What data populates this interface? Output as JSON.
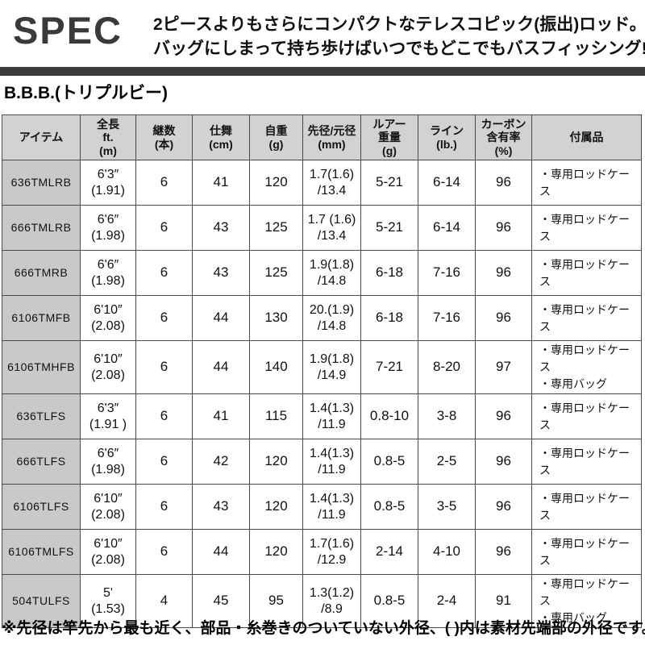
{
  "header": {
    "spec_title": "SPEC",
    "description_line1": "2ピースよりもさらにコンパクトなテレスコピック(振出)ロッド。",
    "description_line2": "バッグにしまって持ち歩けばいつでもどこでもバスフィッシング!"
  },
  "section_title": "B.B.B.(トリプルビー)",
  "spec_table": {
    "columns": [
      {
        "key": "item",
        "label": "アイテム"
      },
      {
        "key": "length",
        "label": "全長\nft.\n(m)"
      },
      {
        "key": "pieces",
        "label": "継数\n(本)"
      },
      {
        "key": "closed_length",
        "label": "仕舞\n(cm)"
      },
      {
        "key": "weight",
        "label": "自重\n(g)"
      },
      {
        "key": "diameter",
        "label": "先径/元径\n(mm)"
      },
      {
        "key": "lure_weight",
        "label": "ルアー\n重量\n(g)"
      },
      {
        "key": "line",
        "label": "ライン\n(lb.)"
      },
      {
        "key": "carbon",
        "label": "カーボン\n含有率\n(%)"
      },
      {
        "key": "accessories",
        "label": "付属品"
      }
    ],
    "rows": [
      {
        "item": "636TMLRB",
        "length": "6'3″\n(1.91)",
        "pieces": "6",
        "closed_length": "41",
        "weight": "120",
        "diameter": "1.7(1.6)\n/13.4",
        "lure_weight": "5-21",
        "line": "6-14",
        "carbon": "96",
        "accessories": "・専用ロッドケース"
      },
      {
        "item": "666TMLRB",
        "length": "6'6″\n(1.98)",
        "pieces": "6",
        "closed_length": "43",
        "weight": "125",
        "diameter": "1.7 (1.6)\n/13.4",
        "lure_weight": "5-21",
        "line": "6-14",
        "carbon": "96",
        "accessories": "・専用ロッドケース"
      },
      {
        "item": "666TMRB",
        "length": "6'6″\n(1.98)",
        "pieces": "6",
        "closed_length": "43",
        "weight": "125",
        "diameter": "1.9(1.8)\n/14.8",
        "lure_weight": "6-18",
        "line": "7-16",
        "carbon": "96",
        "accessories": "・専用ロッドケース"
      },
      {
        "item": "6106TMFB",
        "length": "6'10″\n(2.08)",
        "pieces": "6",
        "closed_length": "44",
        "weight": "130",
        "diameter": "20.(1.9)\n/14.8",
        "lure_weight": "6-18",
        "line": "7-16",
        "carbon": "96",
        "accessories": "・専用ロッドケース"
      },
      {
        "item": "6106TMHFB",
        "length": "6'10″\n(2.08)",
        "pieces": "6",
        "closed_length": "44",
        "weight": "140",
        "diameter": "1.9(1.8)\n/14.9",
        "lure_weight": "7-21",
        "line": "8-20",
        "carbon": "97",
        "accessories": "・専用ロッドケース\n・専用バッグ"
      },
      {
        "item": "636TLFS",
        "length": "6'3″\n(1.91 )",
        "pieces": "6",
        "closed_length": "41",
        "weight": "115",
        "diameter": "1.4(1.3)\n/11.9",
        "lure_weight": "0.8-10",
        "line": "3-8",
        "carbon": "96",
        "accessories": "・専用ロッドケース"
      },
      {
        "item": "666TLFS",
        "length": "6'6″\n(1.98)",
        "pieces": "6",
        "closed_length": "42",
        "weight": "120",
        "diameter": "1.4(1.3)\n/11.9",
        "lure_weight": "0.8-5",
        "line": "2-5",
        "carbon": "96",
        "accessories": "・専用ロッドケース"
      },
      {
        "item": "6106TLFS",
        "length": "6'10″\n(2.08)",
        "pieces": "6",
        "closed_length": "43",
        "weight": "120",
        "diameter": "1.4(1.3)\n/11.9",
        "lure_weight": "0.8-5",
        "line": "3-5",
        "carbon": "96",
        "accessories": "・専用ロッドケース"
      },
      {
        "item": "6106TMLFS",
        "length": "6'10″\n(2.08)",
        "pieces": "6",
        "closed_length": "44",
        "weight": "120",
        "diameter": "1.7(1.6)\n/12.9",
        "lure_weight": "2-14",
        "line": "4-10",
        "carbon": "96",
        "accessories": "・専用ロッドケース"
      },
      {
        "item": "504TULFS",
        "length": "5'\n(1.53)",
        "pieces": "4",
        "closed_length": "45",
        "weight": "95",
        "diameter": "1.3(1.2)\n/8.9",
        "lure_weight": "0.8-5",
        "line": "2-4",
        "carbon": "91",
        "accessories": "・専用ロッドケース\n・専用バッグ"
      }
    ]
  },
  "footnote": "※先径は竿先から最も近く、部品・糸巻きのついていない外径、( )内は素材先端部の外径です。",
  "colors": {
    "header_bg": "#d2d2d2",
    "item_col_bg": "#c9c9c9",
    "border": "#4a4a4a",
    "divider_bar": "#3c3c3c",
    "text": "#111111"
  }
}
